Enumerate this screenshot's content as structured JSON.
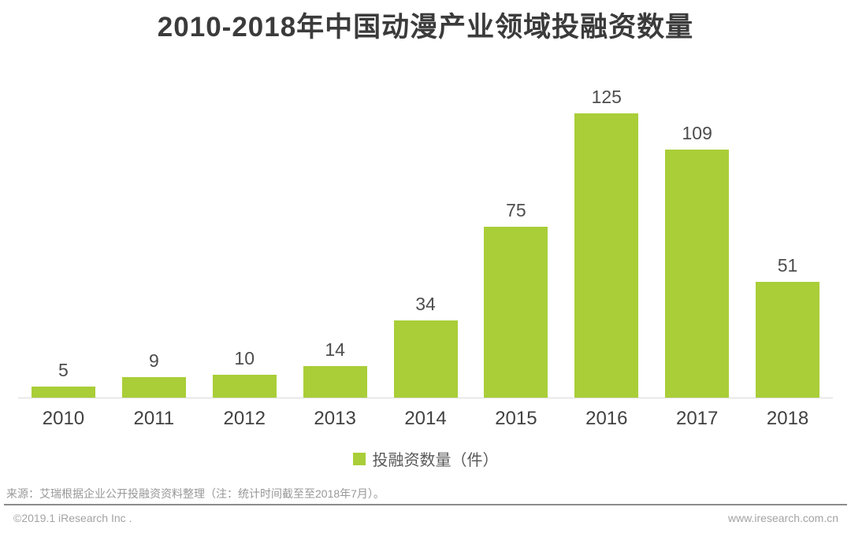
{
  "chart_data": {
    "type": "bar",
    "title": "2010-2018年中国动漫产业领域投融资数量",
    "categories": [
      "2010",
      "2011",
      "2012",
      "2013",
      "2014",
      "2015",
      "2016",
      "2017",
      "2018"
    ],
    "values": [
      5,
      9,
      10,
      14,
      34,
      75,
      125,
      109,
      51
    ],
    "legend": "投融资数量（件）",
    "xlabel": "",
    "ylabel": "",
    "ylim": [
      0,
      130
    ],
    "grid": false,
    "legend_position": "bottom",
    "bar_color": "#a9ce38",
    "axis_line_color": "#d9d9d9"
  },
  "footer": {
    "source": "来源：艾瑞根据企业公开投融资资料整理（注：统计时间截至至2018年7月）。",
    "copyright": "©2019.1 iResearch Inc .",
    "website": "www.iresearch.com.cn"
  }
}
